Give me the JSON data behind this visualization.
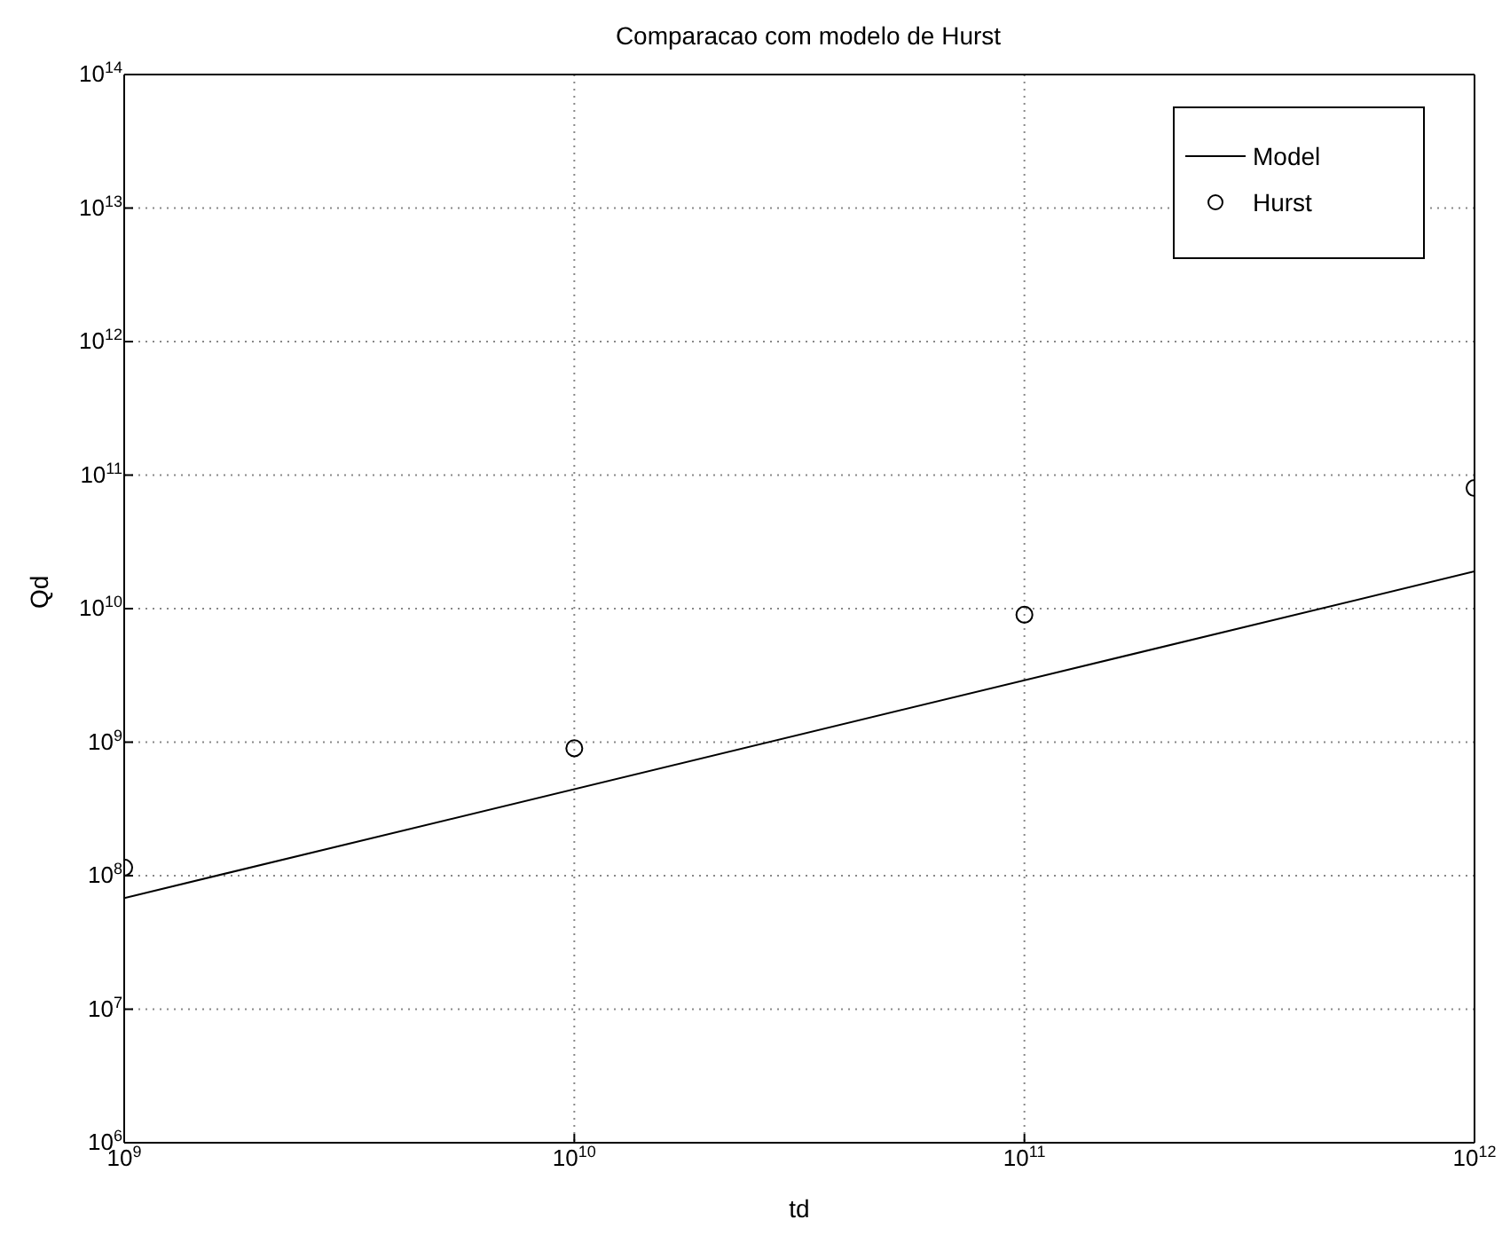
{
  "chart_data": {
    "type": "line",
    "title": "Comparacao com modelo de Hurst",
    "xlabel": "td",
    "ylabel": "Qd",
    "log": "xy",
    "grid": true,
    "legend": "top right",
    "xlim": [
      1000000000,
      1000000000000
    ],
    "xticks": [
      {
        "value": 1000000000,
        "label": "10$^{9}$"
      },
      {
        "value": 10000000000,
        "label": "10$^{10}$"
      },
      {
        "value": 100000000000,
        "label": "10$^{11}$"
      },
      {
        "value": 1000000000000,
        "label": "10$^{12}$"
      }
    ],
    "ylim": [
      1000000,
      100000000000000
    ],
    "yticks": [
      {
        "value": 1000000,
        "label": "10$^{6}$"
      },
      {
        "value": 10000000,
        "label": "10$^{7}$"
      },
      {
        "value": 100000000,
        "label": "10$^{8}$"
      },
      {
        "value": 1000000000,
        "label": "10$^{9}$"
      },
      {
        "value": 10000000000,
        "label": "10$^{10}$"
      },
      {
        "value": 100000000000,
        "label": "10$^{11}$"
      },
      {
        "value": 1000000000000,
        "label": "10$^{12}$"
      },
      {
        "value": 10000000000000,
        "label": "10$^{13}$"
      },
      {
        "value": 100000000000000,
        "label": "10$^{14}$"
      }
    ],
    "series": [
      {
        "name": "Model",
        "type": "line",
        "color": "#000000",
        "marker": "none",
        "line_style": "solid",
        "x": [
          1000000000,
          1000000000000
        ],
        "values": [
          68000000,
          19000000000
        ]
      },
      {
        "name": "Hurst",
        "type": "scatter",
        "color": "#000000",
        "marker": "circle",
        "x": [
          1000000000,
          10000000000,
          100000000000,
          1000000000000
        ],
        "values": [
          115000000,
          900000000,
          9000000000,
          80000000000
        ]
      }
    ]
  }
}
